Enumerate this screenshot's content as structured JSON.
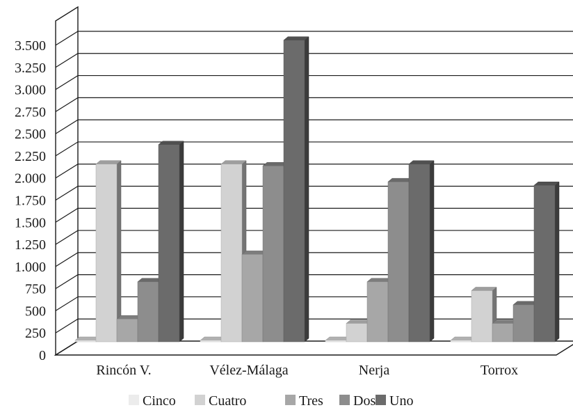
{
  "chart_data": {
    "type": "bar",
    "title": "",
    "xlabel": "",
    "ylabel": "",
    "ylim": [
      0,
      3500
    ],
    "yticks": [
      0,
      250,
      500,
      750,
      1000,
      1250,
      1500,
      1750,
      2000,
      2250,
      2500,
      2750,
      3000,
      3250,
      3500
    ],
    "ytick_labels": [
      "0",
      "250",
      "500",
      "750",
      "1.000",
      "1.250",
      "1.500",
      "1.750",
      "2.000",
      "2.250",
      "2.500",
      "2.750",
      "3.000",
      "3.250",
      "3.500"
    ],
    "grid": true,
    "three_d": true,
    "legend_position": "bottom",
    "categories": [
      "Rincón V.",
      "Vélez-Málaga",
      "Nerja",
      "Torrox"
    ],
    "series": [
      {
        "name": "Cinco",
        "color": "#ececec",
        "values": [
          0,
          0,
          0,
          0
        ]
      },
      {
        "name": "Cuatro",
        "color": "#d2d2d2",
        "values": [
          2000,
          2000,
          200,
          570
        ]
      },
      {
        "name": "Tres",
        "color": "#a7a7a7",
        "values": [
          250,
          980,
          670,
          200
        ]
      },
      {
        "name": "Dos",
        "color": "#8d8d8d",
        "values": [
          670,
          1980,
          1800,
          410
        ]
      },
      {
        "name": "Uno",
        "color": "#6b6b6b",
        "values": [
          2220,
          3400,
          2000,
          1760
        ]
      }
    ]
  }
}
